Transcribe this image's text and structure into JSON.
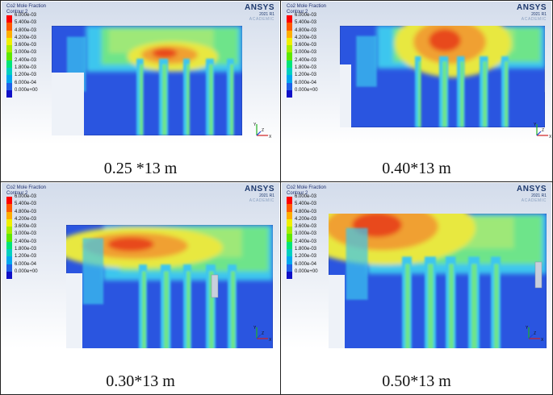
{
  "legend": {
    "title": "Co2 Mole Fraction",
    "subtitle": "Contour 2",
    "levels": [
      "6.000e-03",
      "5.400e-03",
      "4.800e-03",
      "4.200e-03",
      "3.600e-03",
      "3.000e-03",
      "2.400e-03",
      "1.800e-03",
      "1.200e-03",
      "6.000e-04",
      "0.000e+00"
    ],
    "colors": [
      "#ff0000",
      "#ff5a00",
      "#ffae00",
      "#f0f000",
      "#a8ee00",
      "#5ee800",
      "#00e47a",
      "#00d0c0",
      "#00a8ee",
      "#2060e8",
      "#1010c8"
    ]
  },
  "brand": {
    "name": "ANSYS",
    "version": "2021 R1",
    "edition": "ACADEMIC"
  },
  "axes": {
    "y": "Y",
    "z": "Z",
    "x": "X"
  },
  "panels": [
    {
      "caption": "0.25 *13 m"
    },
    {
      "caption": "0.40*13 m"
    },
    {
      "caption": "0.30*13 m"
    },
    {
      "caption": "0.50*13 m"
    }
  ],
  "colors": {
    "deep_blue": "#2a55e0",
    "cyan": "#3cc6ee",
    "green": "#6ee48a",
    "light_green": "#9ee878",
    "yellow": "#e8e840",
    "orange": "#f0a030",
    "red": "#e84a1a"
  }
}
